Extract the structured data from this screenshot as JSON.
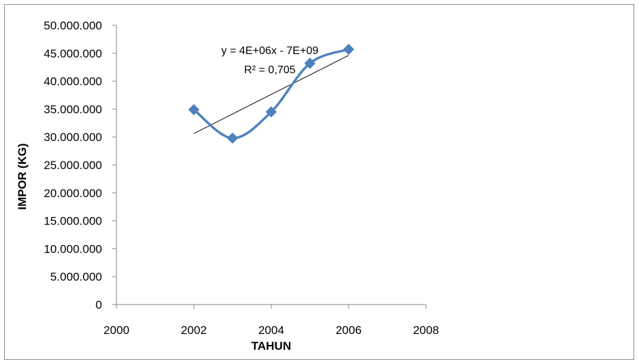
{
  "chart_data": {
    "type": "scatter",
    "title": "",
    "xlabel": "TAHUN",
    "ylabel": "IMPOR (KG)",
    "xlim": [
      2000,
      2008
    ],
    "ylim": [
      0,
      50000000
    ],
    "x_ticks": [
      "2000",
      "2002",
      "2004",
      "2006",
      "2008"
    ],
    "y_ticks": [
      "0",
      "5.000.000",
      "10.000.000",
      "15.000.000",
      "20.000.000",
      "25.000.000",
      "30.000.000",
      "35.000.000",
      "40.000.000",
      "45.000.000",
      "50.000.000"
    ],
    "series": [
      {
        "x": [
          2002,
          2003,
          2004,
          2005,
          2006
        ],
        "y": [
          34900000,
          29800000,
          34500000,
          43200000,
          45700000
        ],
        "color": "#4f81bd",
        "marker": "diamond",
        "line": "smooth"
      }
    ],
    "trendline": {
      "type": "linear",
      "equation": "y = 4E+06x - 7E+09",
      "r_squared": "R² = 0,705",
      "color": "#000000"
    },
    "grid": false,
    "legend": "none"
  }
}
